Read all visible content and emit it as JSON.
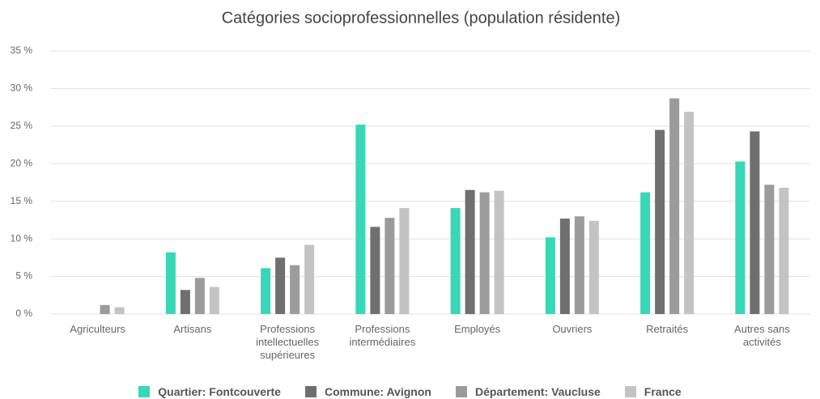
{
  "chart_data": {
    "type": "bar",
    "title": "Catégories socioprofessionnelles (population résidente)",
    "categories": [
      "Agriculteurs",
      "Artisans",
      "Professions intellectuelles supérieures",
      "Professions intermédiaires",
      "Employés",
      "Ouvriers",
      "Retraités",
      "Autres sans activités"
    ],
    "series": [
      {
        "name": "Quartier: Fontcouverte",
        "color": "#38d7b6",
        "values": [
          0,
          8.2,
          6.1,
          25.2,
          14.1,
          10.2,
          16.2,
          20.3
        ]
      },
      {
        "name": "Commune: Avignon",
        "color": "#6f6f6f",
        "values": [
          0,
          3.2,
          7.5,
          11.6,
          16.5,
          12.7,
          24.5,
          24.3
        ]
      },
      {
        "name": "Département: Vaucluse",
        "color": "#9b9b9b",
        "values": [
          1.2,
          4.8,
          6.5,
          12.8,
          16.2,
          13.0,
          28.7,
          17.2
        ]
      },
      {
        "name": "France",
        "color": "#c3c3c3",
        "values": [
          0.9,
          3.6,
          9.2,
          14.1,
          16.4,
          12.4,
          26.9,
          16.8
        ]
      }
    ],
    "ylim": [
      0,
      35
    ],
    "yticks": [
      {
        "value": 0,
        "label": "0 %"
      },
      {
        "value": 5,
        "label": "5 %"
      },
      {
        "value": 10,
        "label": "10 %"
      },
      {
        "value": 15,
        "label": "15 %"
      },
      {
        "value": 20,
        "label": "20 %"
      },
      {
        "value": 25,
        "label": "25 %"
      },
      {
        "value": 30,
        "label": "30 %"
      },
      {
        "value": 35,
        "label": "35 %"
      }
    ],
    "grid": true,
    "legend": "bottom"
  }
}
